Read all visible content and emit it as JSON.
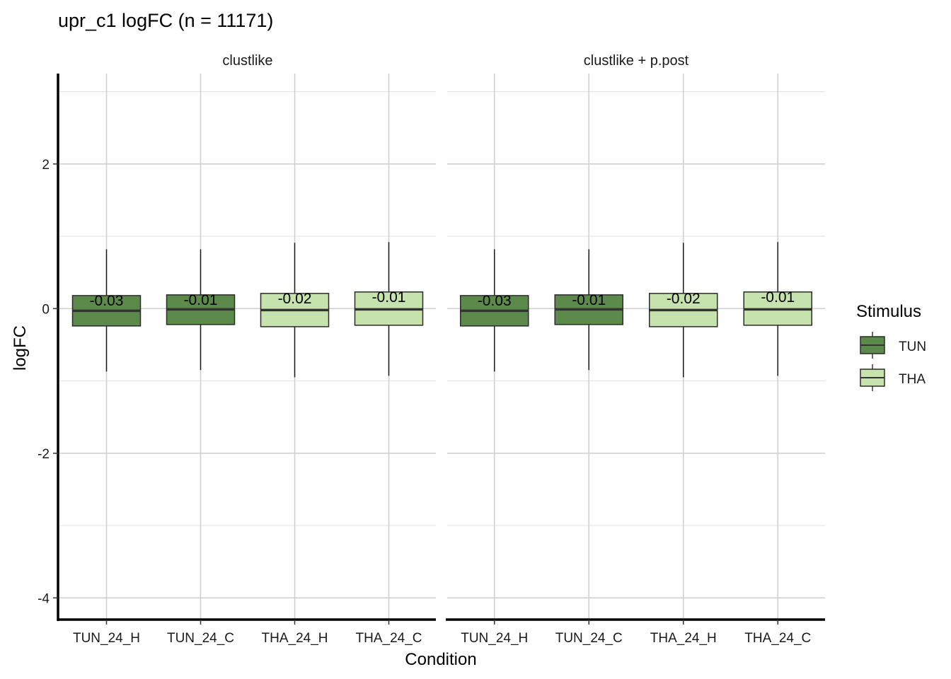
{
  "chart_data": {
    "type": "box",
    "title": "upr_c1 logFC (n = 11171)",
    "xlabel": "Condition",
    "ylabel": "logFC",
    "ylim": [
      -4.3,
      3.25
    ],
    "y_ticks": [
      -4,
      -2,
      0,
      2
    ],
    "y_tick_labels": [
      "-4",
      "-2",
      "0",
      "2"
    ],
    "grid": true,
    "categories": [
      "TUN_24_H",
      "TUN_24_C",
      "THA_24_H",
      "THA_24_C"
    ],
    "facets": [
      {
        "label": "clustlike",
        "boxes": [
          {
            "category": "TUN_24_H",
            "stimulus": "TUN",
            "min": -0.87,
            "q1": -0.24,
            "median": -0.03,
            "q3": 0.18,
            "max": 0.82,
            "label": "-0.03"
          },
          {
            "category": "TUN_24_C",
            "stimulus": "TUN",
            "min": -0.85,
            "q1": -0.22,
            "median": -0.01,
            "q3": 0.19,
            "max": 0.82,
            "label": "-0.01"
          },
          {
            "category": "THA_24_H",
            "stimulus": "THA",
            "min": -0.95,
            "q1": -0.25,
            "median": -0.02,
            "q3": 0.21,
            "max": 0.91,
            "label": "-0.02"
          },
          {
            "category": "THA_24_C",
            "stimulus": "THA",
            "min": -0.93,
            "q1": -0.23,
            "median": -0.01,
            "q3": 0.23,
            "max": 0.92,
            "label": "-0.01"
          }
        ]
      },
      {
        "label": "clustlike + p.post",
        "boxes": [
          {
            "category": "TUN_24_H",
            "stimulus": "TUN",
            "min": -0.87,
            "q1": -0.24,
            "median": -0.03,
            "q3": 0.18,
            "max": 0.82,
            "label": "-0.03"
          },
          {
            "category": "TUN_24_C",
            "stimulus": "TUN",
            "min": -0.85,
            "q1": -0.22,
            "median": -0.01,
            "q3": 0.19,
            "max": 0.82,
            "label": "-0.01"
          },
          {
            "category": "THA_24_H",
            "stimulus": "THA",
            "min": -0.95,
            "q1": -0.25,
            "median": -0.02,
            "q3": 0.21,
            "max": 0.91,
            "label": "-0.02"
          },
          {
            "category": "THA_24_C",
            "stimulus": "THA",
            "min": -0.93,
            "q1": -0.23,
            "median": -0.01,
            "q3": 0.23,
            "max": 0.92,
            "label": "-0.01"
          }
        ]
      }
    ],
    "legend": {
      "title": "Stimulus",
      "placement": "right",
      "entries": [
        {
          "name": "TUN",
          "color": "#5b8a4a"
        },
        {
          "name": "THA",
          "color": "#c6e2ad"
        }
      ]
    }
  }
}
